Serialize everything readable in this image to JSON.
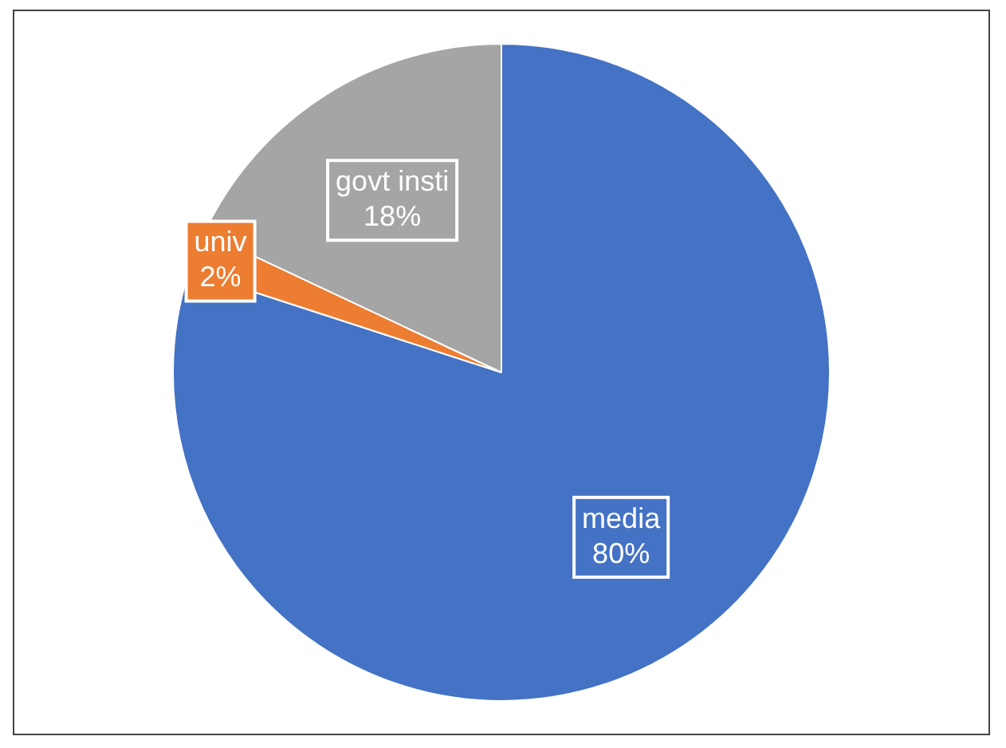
{
  "chart_data": {
    "type": "pie",
    "categories": [
      "media",
      "univ",
      "govt insti"
    ],
    "values": [
      80,
      2,
      18
    ],
    "colors": [
      "#4472c4",
      "#ed7d31",
      "#a5a5a5"
    ],
    "value_labels": [
      "80%",
      "2%",
      "18%"
    ],
    "legend": false
  }
}
